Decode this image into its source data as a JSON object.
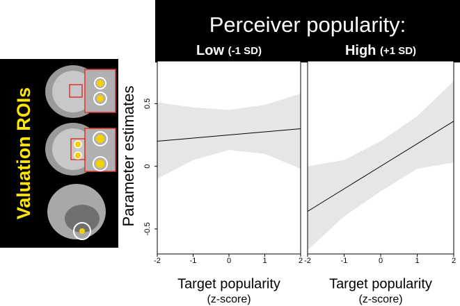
{
  "figure_title": "Perceiver popularity:",
  "roi_label": "Valuation ROIs",
  "y_label": "Parameter estimates",
  "chart_data": [
    {
      "type": "line",
      "title": "Low",
      "title_note": "(-1 SD)",
      "xlabel": "Target popularity",
      "xlabel_note": "(z-score)",
      "x": [
        -2,
        -1,
        0,
        1,
        2
      ],
      "values": [
        0.2,
        0.225,
        0.25,
        0.275,
        0.3
      ],
      "band_upper": [
        0.51,
        0.47,
        0.45,
        0.49,
        0.58
      ],
      "band_lower": [
        -0.1,
        0.05,
        0.13,
        0.1,
        -0.02
      ],
      "color": "#000000",
      "band_color": "#e6e6e6",
      "xlim": [
        -2,
        2
      ],
      "ylim": [
        -0.7,
        0.84
      ],
      "xticks": [
        -2,
        -1,
        0,
        1,
        2
      ],
      "yticks": [
        0.5,
        0,
        -0.5
      ]
    },
    {
      "type": "line",
      "title": "High",
      "title_note": "(+1 SD)",
      "xlabel": "Target popularity",
      "xlabel_note": "(z-score)",
      "x": [
        -2,
        -1,
        0,
        1,
        2
      ],
      "values": [
        -0.36,
        -0.18,
        0,
        0.18,
        0.36
      ],
      "band_upper": [
        0.0,
        0.05,
        0.2,
        0.4,
        0.68
      ],
      "band_lower": [
        -0.67,
        -0.4,
        -0.2,
        -0.02,
        0.03
      ],
      "color": "#000000",
      "band_color": "#e6e6e6",
      "xlim": [
        -2,
        2
      ],
      "ylim": [
        -0.7,
        0.84
      ],
      "xticks": [
        -2,
        -1,
        0,
        1,
        2
      ]
    }
  ]
}
